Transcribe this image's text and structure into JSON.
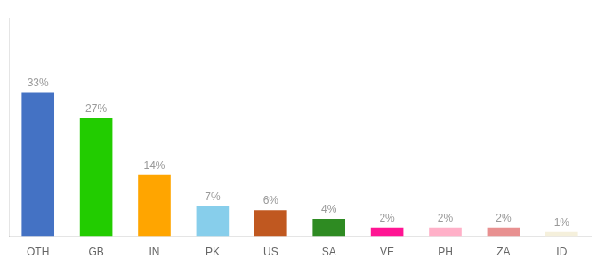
{
  "chart_data": {
    "type": "bar",
    "categories": [
      "OTH",
      "GB",
      "IN",
      "PK",
      "US",
      "SA",
      "VE",
      "PH",
      "ZA",
      "ID"
    ],
    "values": [
      33,
      27,
      14,
      7,
      6,
      4,
      2,
      2,
      2,
      1
    ],
    "value_labels": [
      "33%",
      "27%",
      "14%",
      "7%",
      "6%",
      "4%",
      "2%",
      "2%",
      "2%",
      "1%"
    ],
    "colors": [
      "#4472C4",
      "#22CC00",
      "#FFA500",
      "#87CEEB",
      "#C05820",
      "#2E8B22",
      "#FF1493",
      "#FFB0C8",
      "#E89090",
      "#F5F0DC"
    ],
    "ylim": [
      0,
      50
    ],
    "yticks": [
      0,
      10,
      20,
      30,
      40,
      50
    ],
    "grid": false,
    "data_labels": true,
    "tick_labels": "x"
  }
}
